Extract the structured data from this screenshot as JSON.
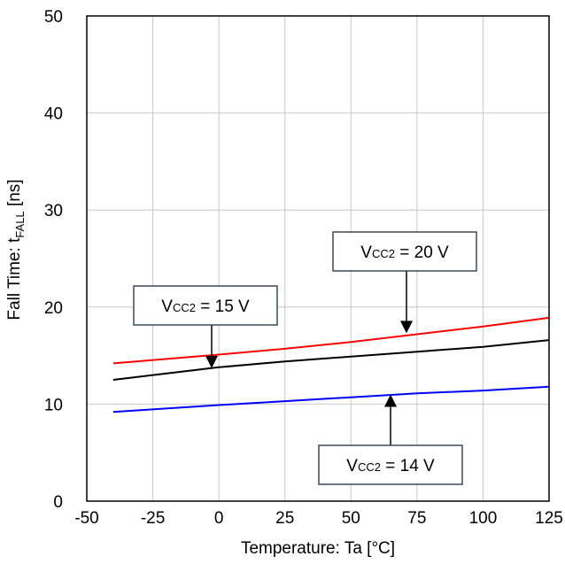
{
  "chart_data": {
    "type": "line",
    "xlabel": "Temperature: Ta [°C]",
    "ylabel": {
      "main": "Fall Time: t",
      "sub": "FALL",
      "unit": " [ns]"
    },
    "xlim": [
      -50,
      125
    ],
    "ylim": [
      0,
      50
    ],
    "xticks": [
      -50,
      -25,
      0,
      25,
      50,
      75,
      100,
      125
    ],
    "yticks": [
      0,
      10,
      20,
      30,
      40,
      50
    ],
    "grid": true,
    "series": [
      {
        "color": "#ff0000",
        "x": [
          -40,
          0,
          25,
          50,
          75,
          100,
          125
        ],
        "y": [
          14.2,
          15.1,
          15.7,
          16.4,
          17.2,
          18.0,
          18.9
        ]
      },
      {
        "color": "#000000",
        "x": [
          -40,
          0,
          25,
          50,
          75,
          100,
          125
        ],
        "y": [
          12.5,
          13.8,
          14.4,
          14.9,
          15.4,
          15.9,
          16.6
        ]
      },
      {
        "color": "#0000ff",
        "x": [
          -40,
          0,
          25,
          50,
          75,
          100,
          125
        ],
        "y": [
          9.2,
          9.9,
          10.3,
          10.7,
          11.1,
          11.4,
          11.8
        ]
      }
    ],
    "annotations": [
      {
        "id": "v20",
        "main": "V",
        "sub": "CC2",
        "rest": " = 20 V",
        "arrow_to": [
          72,
          17.3
        ]
      },
      {
        "id": "v15",
        "main": "V",
        "sub": "CC2",
        "rest": " = 15 V",
        "arrow_to": [
          -2,
          13.7
        ]
      },
      {
        "id": "v14",
        "main": "V",
        "sub": "CC2",
        "rest": " = 14 V",
        "arrow_to": [
          65,
          11.0
        ]
      }
    ]
  }
}
